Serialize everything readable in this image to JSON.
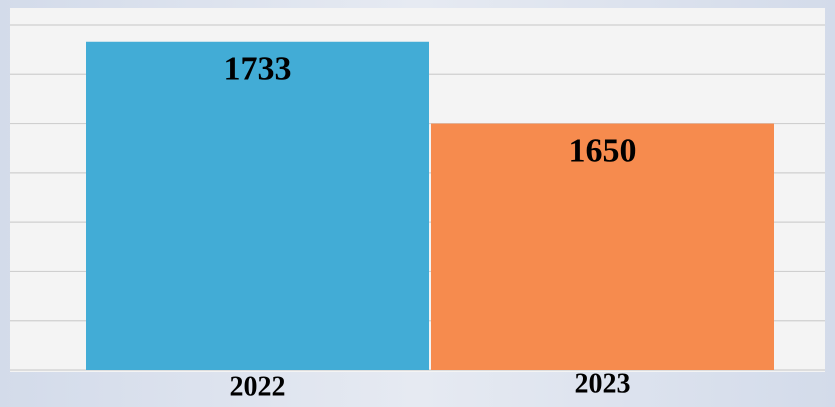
{
  "chart_data": {
    "type": "bar",
    "categories": [
      "2022",
      "2023"
    ],
    "values": [
      1733,
      1650
    ],
    "colors": [
      "#42acd6",
      "#f68b4e"
    ],
    "ylim": [
      1400,
      1750
    ],
    "yticks": [
      1400,
      1450,
      1500,
      1550,
      1600,
      1650,
      1700,
      1750
    ],
    "grid": true
  }
}
